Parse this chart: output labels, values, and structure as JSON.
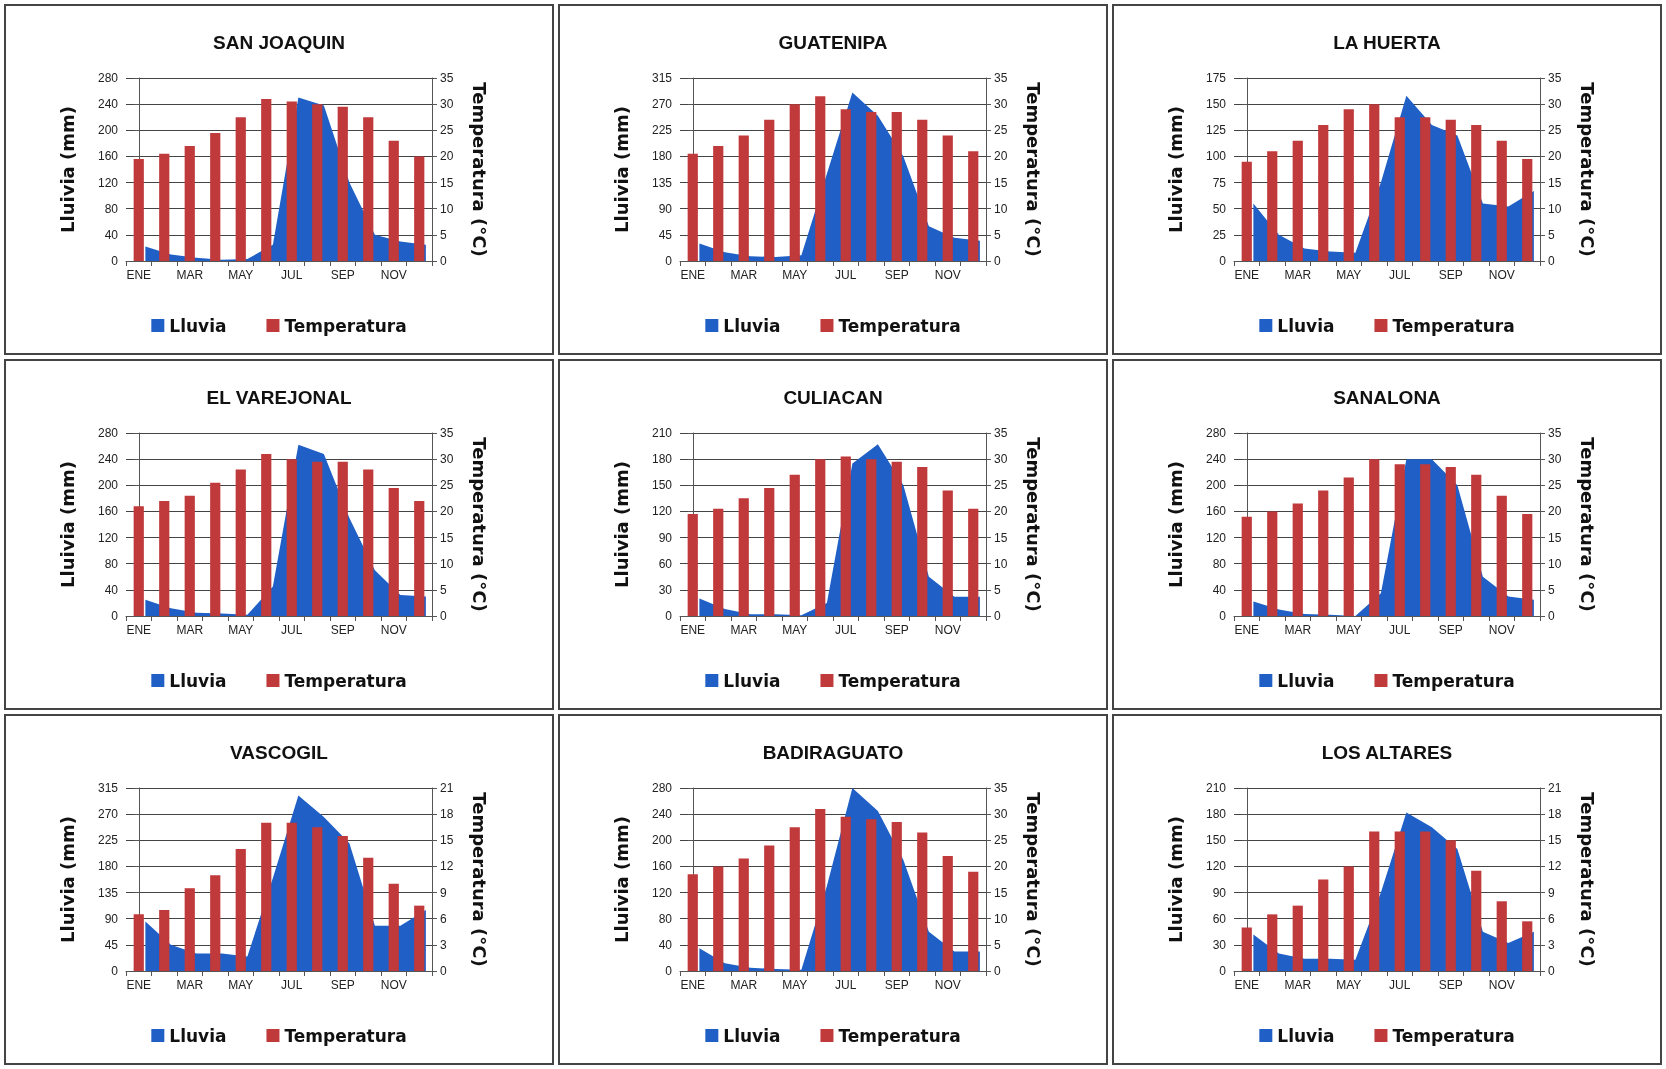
{
  "chart_data": [
    {
      "type": "bar",
      "title": "SAN JOAQUIN",
      "ylabel": "Lluivia (mm)",
      "y2label": "Temperatura (°C)",
      "categories": [
        "ENE",
        null,
        "MAR",
        null,
        "MAY",
        null,
        "JUL",
        null,
        "SEP",
        null,
        "NOV",
        null
      ],
      "ylim": [
        0,
        280
      ],
      "yticks": [
        0,
        40,
        80,
        120,
        160,
        200,
        240,
        280
      ],
      "y2lim": [
        0,
        35
      ],
      "y2ticks": [
        0,
        5,
        10,
        15,
        20,
        25,
        30,
        35
      ],
      "grid": "y",
      "legend": "bottom",
      "marker": "none",
      "series": [
        {
          "name": "Lluvia",
          "type": "area",
          "color": "#1f5fc6",
          "values": [
            22,
            10,
            5,
            2,
            3,
            25,
            250,
            238,
            120,
            40,
            30,
            25
          ]
        },
        {
          "name": "Temperatura",
          "type": "bar",
          "axis": "y2",
          "color": "#c0393b",
          "values": [
            19.5,
            20.5,
            22,
            24.5,
            27.5,
            31,
            30.5,
            30,
            29.5,
            27.5,
            23,
            20
          ]
        }
      ]
    },
    {
      "type": "bar",
      "title": "GUATENIPA",
      "ylabel": "Lluivia (mm)",
      "y2label": "Temperatura (°C)",
      "categories": [
        "ENE",
        null,
        "MAR",
        null,
        "MAY",
        null,
        "JUL",
        null,
        "SEP",
        null,
        "NOV",
        null
      ],
      "ylim": [
        0,
        315
      ],
      "yticks": [
        0,
        45,
        90,
        135,
        180,
        225,
        270,
        315
      ],
      "y2lim": [
        0,
        35
      ],
      "y2ticks": [
        0,
        5,
        10,
        15,
        20,
        25,
        30,
        35
      ],
      "grid": "y",
      "legend": "bottom",
      "marker": "none",
      "series": [
        {
          "name": "Lluvia",
          "type": "area",
          "color": "#1f5fc6",
          "values": [
            30,
            15,
            8,
            7,
            10,
            150,
            290,
            250,
            180,
            60,
            40,
            35
          ]
        },
        {
          "name": "Temperatura",
          "type": "bar",
          "axis": "y2",
          "color": "#c0393b",
          "values": [
            20.5,
            22,
            24,
            27,
            30,
            31.5,
            29,
            28.5,
            28.5,
            27,
            24,
            21
          ]
        }
      ]
    },
    {
      "type": "bar",
      "title": "LA HUERTA",
      "ylabel": "Lluivia (mm)",
      "y2label": "Temperatura (°C)",
      "categories": [
        "ENE",
        null,
        "MAR",
        null,
        "MAY",
        null,
        "JUL",
        null,
        "SEP",
        null,
        "NOV",
        null
      ],
      "ylim": [
        0,
        175
      ],
      "yticks": [
        0,
        25,
        50,
        75,
        100,
        125,
        150,
        175
      ],
      "y2lim": [
        0,
        35
      ],
      "y2ticks": [
        0,
        5,
        10,
        15,
        20,
        25,
        30,
        35
      ],
      "grid": "y",
      "legend": "bottom",
      "marker": "none",
      "series": [
        {
          "name": "Lluvia",
          "type": "area",
          "color": "#1f5fc6",
          "values": [
            55,
            25,
            12,
            9,
            8,
            75,
            158,
            130,
            120,
            55,
            52,
            67
          ]
        },
        {
          "name": "Temperatura",
          "type": "bar",
          "axis": "y2",
          "color": "#c0393b",
          "values": [
            19,
            21,
            23,
            26,
            29,
            30,
            27.5,
            27.5,
            27,
            26,
            23,
            19.5
          ]
        }
      ]
    },
    {
      "type": "bar",
      "title": "EL VAREJONAL",
      "ylabel": "Lluivia (mm)",
      "y2label": "Temperatura (°C)",
      "categories": [
        "ENE",
        null,
        "MAR",
        null,
        "MAY",
        null,
        "JUL",
        null,
        "SEP",
        null,
        "NOV",
        null
      ],
      "ylim": [
        0,
        280
      ],
      "yticks": [
        0,
        40,
        80,
        120,
        160,
        200,
        240,
        280
      ],
      "y2lim": [
        0,
        35
      ],
      "y2ticks": [
        0,
        5,
        10,
        15,
        20,
        25,
        30,
        35
      ],
      "grid": "y",
      "legend": "bottom",
      "marker": "none",
      "series": [
        {
          "name": "Lluvia",
          "type": "area",
          "color": "#1f5fc6",
          "values": [
            25,
            12,
            5,
            4,
            2,
            45,
            262,
            248,
            150,
            70,
            32,
            30
          ]
        },
        {
          "name": "Temperatura",
          "type": "bar",
          "axis": "y2",
          "color": "#c0393b",
          "values": [
            21,
            22,
            23,
            25.5,
            28,
            31,
            30,
            29.5,
            29.5,
            28,
            24.5,
            22
          ]
        }
      ]
    },
    {
      "type": "bar",
      "title": "CULIACAN",
      "ylabel": "Lluivia (mm)",
      "y2label": "Temperatura (°C)",
      "categories": [
        "ENE",
        null,
        "MAR",
        null,
        "MAY",
        null,
        "JUL",
        null,
        "SEP",
        null,
        "NOV",
        null
      ],
      "ylim": [
        0,
        210
      ],
      "yticks": [
        0,
        30,
        60,
        90,
        120,
        150,
        180,
        210
      ],
      "y2lim": [
        0,
        35
      ],
      "y2ticks": [
        0,
        5,
        10,
        15,
        20,
        25,
        30,
        35
      ],
      "grid": "y",
      "legend": "bottom",
      "marker": "none",
      "series": [
        {
          "name": "Lluvia",
          "type": "area",
          "color": "#1f5fc6",
          "values": [
            20,
            8,
            2,
            2,
            1,
            15,
            175,
            197,
            150,
            45,
            22,
            22
          ]
        },
        {
          "name": "Temperatura",
          "type": "bar",
          "axis": "y2",
          "color": "#c0393b",
          "values": [
            19.5,
            20.5,
            22.5,
            24.5,
            27,
            30,
            30.5,
            30,
            29.5,
            28.5,
            24,
            20.5
          ]
        }
      ]
    },
    {
      "type": "bar",
      "title": "SANALONA",
      "ylabel": "Lluivia (mm)",
      "y2label": "Temperatura (°C)",
      "categories": [
        "ENE",
        null,
        "MAR",
        null,
        "MAY",
        null,
        "JUL",
        null,
        "SEP",
        null,
        "NOV",
        null
      ],
      "ylim": [
        0,
        280
      ],
      "yticks": [
        0,
        40,
        80,
        120,
        160,
        200,
        240,
        280
      ],
      "y2lim": [
        0,
        35
      ],
      "y2ticks": [
        0,
        5,
        10,
        15,
        20,
        25,
        30,
        35
      ],
      "grid": "y",
      "legend": "bottom",
      "marker": "none",
      "series": [
        {
          "name": "Lluvia",
          "type": "area",
          "color": "#1f5fc6",
          "values": [
            22,
            10,
            3,
            2,
            0,
            35,
            240,
            240,
            200,
            60,
            30,
            25
          ]
        },
        {
          "name": "Temperatura",
          "type": "bar",
          "axis": "y2",
          "color": "#c0393b",
          "values": [
            19,
            20,
            21.5,
            24,
            26.5,
            30,
            29,
            29,
            28.5,
            27,
            23,
            19.5
          ]
        }
      ]
    },
    {
      "type": "bar",
      "title": "VASCOGIL",
      "ylabel": "Lluivia (mm)",
      "y2label": "Temperatura (°C)",
      "categories": [
        "ENE",
        null,
        "MAR",
        null,
        "MAY",
        null,
        "JUL",
        null,
        "SEP",
        null,
        "NOV",
        null
      ],
      "ylim": [
        0,
        315
      ],
      "yticks": [
        0,
        45,
        90,
        135,
        180,
        225,
        270,
        315
      ],
      "y2lim": [
        0,
        21
      ],
      "y2ticks": [
        0,
        3,
        6,
        9,
        12,
        15,
        18,
        21
      ],
      "grid": "y",
      "legend": "bottom",
      "marker": "none",
      "series": [
        {
          "name": "Lluvia",
          "type": "area",
          "color": "#1f5fc6",
          "values": [
            85,
            45,
            30,
            30,
            25,
            160,
            302,
            265,
            220,
            78,
            78,
            105
          ]
        },
        {
          "name": "Temperatura",
          "type": "bar",
          "axis": "y2",
          "color": "#c0393b",
          "values": [
            6.5,
            7,
            9.5,
            11,
            14,
            17,
            17,
            16.5,
            15.5,
            13,
            10,
            7.5
          ]
        }
      ]
    },
    {
      "type": "bar",
      "title": "BADIRAGUATO",
      "ylabel": "Lluivia (mm)",
      "y2label": "Temperatura (°C)",
      "categories": [
        "ENE",
        null,
        "MAR",
        null,
        "MAY",
        null,
        "JUL",
        null,
        "SEP",
        null,
        "NOV",
        null
      ],
      "ylim": [
        0,
        280
      ],
      "yticks": [
        0,
        40,
        80,
        120,
        160,
        200,
        240,
        280
      ],
      "y2lim": [
        0,
        35
      ],
      "y2ticks": [
        0,
        5,
        10,
        15,
        20,
        25,
        30,
        35
      ],
      "grid": "y",
      "legend": "bottom",
      "marker": "none",
      "series": [
        {
          "name": "Lluvia",
          "type": "area",
          "color": "#1f5fc6",
          "values": [
            35,
            12,
            5,
            3,
            2,
            130,
            280,
            245,
            170,
            60,
            30,
            30
          ]
        },
        {
          "name": "Temperatura",
          "type": "bar",
          "axis": "y2",
          "color": "#c0393b",
          "values": [
            18.5,
            20,
            21.5,
            24,
            27.5,
            31,
            29.5,
            29,
            28.5,
            26.5,
            22,
            19
          ]
        }
      ]
    },
    {
      "type": "bar",
      "title": "LOS ALTARES",
      "ylabel": "Lluivia (mm)",
      "y2label": "Temperatura (°C)",
      "categories": [
        "ENE",
        null,
        "MAR",
        null,
        "MAY",
        null,
        "JUL",
        null,
        "SEP",
        null,
        "NOV",
        null
      ],
      "ylim": [
        0,
        210
      ],
      "yticks": [
        0,
        30,
        60,
        90,
        120,
        150,
        180,
        210
      ],
      "y2lim": [
        0,
        21
      ],
      "y2ticks": [
        0,
        3,
        6,
        9,
        12,
        15,
        18,
        21
      ],
      "grid": "y",
      "legend": "bottom",
      "marker": "none",
      "series": [
        {
          "name": "Lluvia",
          "type": "area",
          "color": "#1f5fc6",
          "values": [
            42,
            20,
            14,
            14,
            13,
            90,
            182,
            165,
            140,
            45,
            32,
            45
          ]
        },
        {
          "name": "Temperatura",
          "type": "bar",
          "axis": "y2",
          "color": "#c0393b",
          "values": [
            5,
            6.5,
            7.5,
            10.5,
            12,
            16,
            16,
            16,
            15,
            11.5,
            8,
            5.7
          ]
        }
      ]
    }
  ]
}
